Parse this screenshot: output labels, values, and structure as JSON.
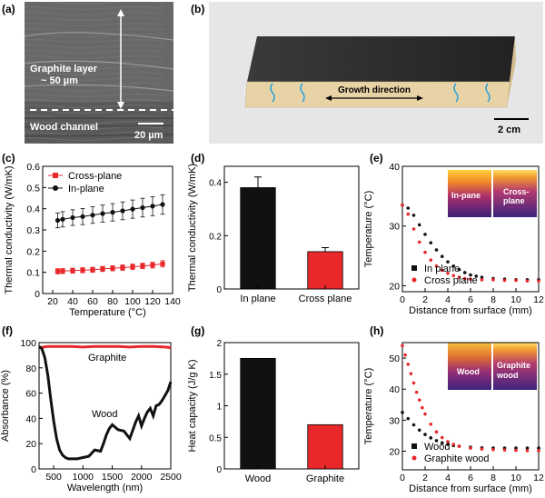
{
  "panels": {
    "a": {
      "letter": "(a)",
      "layer_label": "Graphite layer",
      "layer_thickness": "~ 50 µm",
      "channel_label": "Wood channel",
      "scale_bar": "20 µm"
    },
    "b": {
      "letter": "(b)",
      "arrow_label": "Growth direction",
      "scale_bar": "2 cm"
    },
    "c": {
      "letter": "(c)"
    },
    "d": {
      "letter": "(d)"
    },
    "e": {
      "letter": "(e)",
      "inset_labels": [
        "In-pane",
        "Cross-plane"
      ]
    },
    "f": {
      "letter": "(f)"
    },
    "g": {
      "letter": "(g)"
    },
    "h": {
      "letter": "(h)",
      "inset_labels": [
        "Wood",
        "Graphite wood"
      ]
    }
  },
  "colors": {
    "black_series": "#111111",
    "red_series": "#e8282a"
  },
  "chart_data": [
    {
      "id": "c",
      "type": "scatter",
      "xlabel": "Temperature (°C)",
      "ylabel": "Thermal conductivity (W/mK)",
      "xlim": [
        10,
        140
      ],
      "ylim": [
        0.0,
        0.6
      ],
      "xticks": [
        20,
        40,
        60,
        80,
        100,
        120,
        140
      ],
      "yticks": [
        0.0,
        0.1,
        0.2,
        0.3,
        0.4,
        0.5,
        0.6
      ],
      "legend_position": "top-left",
      "series": [
        {
          "name": "Cross-plane",
          "color": "#e8282a",
          "marker": "square",
          "x": [
            25,
            30,
            40,
            50,
            60,
            70,
            80,
            90,
            100,
            110,
            120,
            130
          ],
          "y": [
            0.105,
            0.106,
            0.108,
            0.11,
            0.112,
            0.116,
            0.119,
            0.122,
            0.126,
            0.13,
            0.134,
            0.14
          ],
          "err": [
            0.012,
            0.012,
            0.012,
            0.012,
            0.012,
            0.012,
            0.012,
            0.013,
            0.013,
            0.013,
            0.014,
            0.015
          ]
        },
        {
          "name": "In-plane",
          "color": "#111111",
          "marker": "circle",
          "x": [
            25,
            30,
            40,
            50,
            60,
            70,
            80,
            90,
            100,
            110,
            120,
            130
          ],
          "y": [
            0.345,
            0.35,
            0.358,
            0.363,
            0.37,
            0.377,
            0.383,
            0.39,
            0.398,
            0.405,
            0.412,
            0.42
          ],
          "err": [
            0.035,
            0.036,
            0.037,
            0.038,
            0.039,
            0.04,
            0.041,
            0.042,
            0.043,
            0.044,
            0.045,
            0.046
          ]
        }
      ]
    },
    {
      "id": "d",
      "type": "bar",
      "xlabel": "",
      "ylabel": "Thermal conductivity (W/mK)",
      "ylim": [
        0.0,
        0.46
      ],
      "yticks": [
        0.0,
        0.2,
        0.4
      ],
      "categories": [
        "In plane",
        "Cross plane"
      ],
      "values": [
        0.38,
        0.14
      ],
      "errors": [
        0.04,
        0.015
      ],
      "colors": [
        "#111111",
        "#e8282a"
      ]
    },
    {
      "id": "e",
      "type": "scatter",
      "xlabel": "Distance from surface (mm)",
      "ylabel": "Temperature (°C)",
      "xlim": [
        0,
        12
      ],
      "ylim": [
        19,
        40
      ],
      "xticks": [
        0,
        2,
        4,
        6,
        8,
        10,
        12
      ],
      "yticks": [
        20,
        30,
        40
      ],
      "legend_position": "bottom-left",
      "series": [
        {
          "name": "In plane",
          "color": "#111111",
          "x": [
            0,
            0.5,
            1,
            1.5,
            2,
            2.5,
            3,
            3.5,
            4,
            4.5,
            5,
            5.5,
            6,
            6.5,
            7,
            8,
            9,
            10,
            11,
            12
          ],
          "y": [
            33.5,
            33,
            31.8,
            30.2,
            28.6,
            27.2,
            26,
            24.9,
            24,
            23.3,
            22.7,
            22.2,
            21.8,
            21.6,
            21.4,
            21.2,
            21.1,
            21,
            21,
            21
          ]
        },
        {
          "name": "Cross plane",
          "color": "#e8282a",
          "x": [
            0,
            0.5,
            1,
            1.5,
            2,
            2.5,
            3,
            3.5,
            4,
            4.5,
            5,
            5.5,
            6,
            7,
            8,
            9,
            10,
            11,
            12
          ],
          "y": [
            33.5,
            32,
            29.5,
            27.3,
            25.6,
            24.3,
            23.3,
            22.6,
            22.1,
            21.7,
            21.4,
            21.2,
            21.1,
            21,
            21,
            20.9,
            20.9,
            20.8,
            20.8
          ]
        }
      ]
    },
    {
      "id": "f",
      "type": "line",
      "xlabel": "Wavelength (nm)",
      "ylabel": "Absorbance (%)",
      "xlim": [
        250,
        2500
      ],
      "ylim": [
        0,
        100
      ],
      "xticks": [
        500,
        1000,
        1500,
        2000,
        2500
      ],
      "yticks": [
        0,
        20,
        40,
        60,
        80,
        100
      ],
      "annotations": [
        "Graphite",
        "Wood"
      ],
      "series": [
        {
          "name": "Graphite",
          "color": "#e8282a",
          "x": [
            250,
            400,
            600,
            800,
            1000,
            1200,
            1400,
            1600,
            1800,
            2000,
            2200,
            2400,
            2500
          ],
          "y": [
            96,
            97,
            97,
            97,
            96.5,
            97,
            97,
            97,
            96.5,
            97,
            97,
            96.5,
            96
          ]
        },
        {
          "name": "Wood",
          "color": "#111111",
          "x": [
            250,
            300,
            350,
            400,
            450,
            500,
            550,
            600,
            650,
            700,
            750,
            800,
            900,
            1000,
            1100,
            1200,
            1300,
            1350,
            1400,
            1450,
            1500,
            1600,
            1700,
            1800,
            1900,
            1950,
            2000,
            2050,
            2100,
            2150,
            2200,
            2250,
            2300,
            2350,
            2400,
            2450,
            2500
          ],
          "y": [
            97,
            95,
            88,
            74,
            55,
            38,
            24,
            15,
            11,
            9,
            8,
            8,
            8,
            9,
            10,
            15,
            14,
            20,
            27,
            32,
            35,
            31,
            30,
            24,
            37,
            42,
            34,
            40,
            45,
            48,
            42,
            50,
            51,
            54,
            58,
            62,
            69
          ]
        }
      ]
    },
    {
      "id": "g",
      "type": "bar",
      "xlabel": "",
      "ylabel": "Heat capacity (J/g K)",
      "ylim": [
        0,
        2.0
      ],
      "yticks": [
        0.0,
        0.5,
        1.0,
        1.5,
        2.0
      ],
      "categories": [
        "Wood",
        "Graphite"
      ],
      "values": [
        1.75,
        0.7
      ],
      "colors": [
        "#111111",
        "#e8282a"
      ]
    },
    {
      "id": "h",
      "type": "scatter",
      "xlabel": "Distance from surface (mm)",
      "ylabel": "Temperature (°C)",
      "xlim": [
        0,
        12
      ],
      "ylim": [
        14,
        55
      ],
      "xticks": [
        0,
        2,
        4,
        6,
        8,
        10,
        12
      ],
      "yticks": [
        20,
        30,
        40,
        50
      ],
      "legend_position": "bottom-left",
      "series": [
        {
          "name": "Wood",
          "color": "#111111",
          "x": [
            0,
            0.5,
            1,
            1.5,
            2,
            2.5,
            3,
            3.5,
            4,
            4.5,
            5,
            6,
            7,
            8,
            9,
            10,
            11,
            12
          ],
          "y": [
            32.5,
            30.5,
            28.5,
            26.8,
            25.4,
            24.3,
            23.4,
            22.7,
            22.2,
            21.8,
            21.6,
            21.3,
            21.1,
            21,
            21,
            21,
            21,
            21
          ]
        },
        {
          "name": "Graphite wood",
          "color": "#e8282a",
          "x": [
            0,
            0.25,
            0.5,
            0.75,
            1,
            1.25,
            1.5,
            1.75,
            2,
            2.5,
            3,
            3.5,
            4,
            4.5,
            5,
            6,
            7,
            8,
            9,
            10,
            11,
            12
          ],
          "y": [
            54,
            51,
            48,
            45,
            42,
            39,
            36.5,
            34,
            32,
            28.7,
            26.2,
            24.4,
            23.1,
            22.2,
            21.6,
            21,
            20.7,
            20.5,
            20.4,
            20.3,
            20.2,
            20.2
          ]
        }
      ]
    }
  ]
}
